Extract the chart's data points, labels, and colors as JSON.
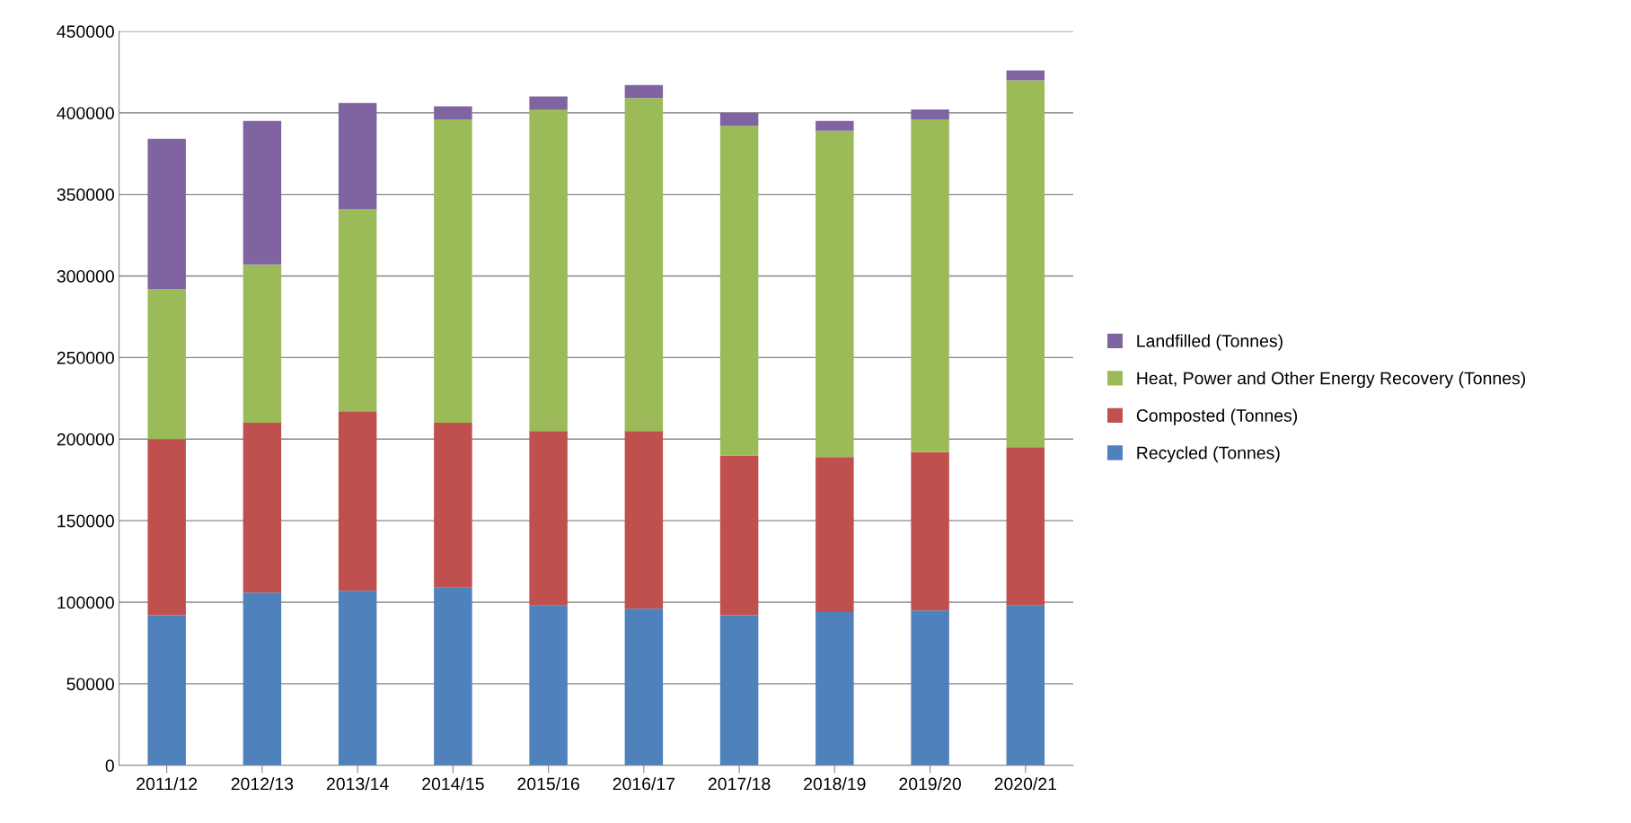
{
  "chart_data": {
    "type": "bar",
    "stacked": true,
    "categories": [
      "2011/12",
      "2012/13",
      "2013/14",
      "2014/15",
      "2015/16",
      "2016/17",
      "2017/18",
      "2018/19",
      "2019/20",
      "2020/21"
    ],
    "series": [
      {
        "name": "Recycled (Tonnes)",
        "color": "#4f81bd",
        "values": [
          92000,
          106000,
          107000,
          109000,
          98000,
          96000,
          92000,
          94000,
          95000,
          98000
        ]
      },
      {
        "name": "Composted (Tonnes)",
        "color": "#c0504d",
        "values": [
          108000,
          104000,
          110000,
          101000,
          107000,
          109000,
          98000,
          95000,
          97000,
          97000
        ]
      },
      {
        "name": "Heat, Power and Other Energy Recovery (Tonnes)",
        "color": "#9bbb59",
        "values": [
          92000,
          97000,
          124000,
          186000,
          197000,
          204000,
          202000,
          200000,
          204000,
          225000
        ]
      },
      {
        "name": "Landfilled (Tonnes)",
        "color": "#8064a2",
        "values": [
          92000,
          88000,
          65000,
          8000,
          8000,
          8000,
          8000,
          6000,
          6000,
          6000
        ]
      }
    ],
    "ylim": [
      0,
      450000
    ],
    "yticks": [
      0,
      50000,
      100000,
      150000,
      200000,
      250000,
      300000,
      350000,
      400000,
      450000
    ],
    "grid": "y",
    "legend": "right"
  }
}
